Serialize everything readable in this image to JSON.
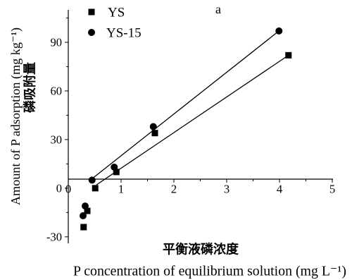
{
  "chart_data": {
    "type": "scatter",
    "title": "a",
    "xlabel": "P concentration of equilibrium solution (mg L⁻¹)",
    "xlabel_cn": "平衡液磷浓度",
    "ylabel": "Amount of P adsorption (mg kg⁻¹)",
    "ylabel_cn": "磷吸附量",
    "xlim": [
      0,
      5
    ],
    "ylim": [
      -34,
      110
    ],
    "x_ticks": [
      0,
      1,
      2,
      3,
      4,
      5
    ],
    "y_ticks": [
      -30,
      0,
      30,
      60,
      90
    ],
    "grid": false,
    "legend": "top-left",
    "series": [
      {
        "name": "YS",
        "marker": "square",
        "color": "#000000",
        "x": [
          0.29,
          0.36,
          0.51,
          0.91,
          1.64,
          4.17
        ],
        "y": [
          -24,
          -14,
          0,
          10,
          34,
          82
        ],
        "fit": {
          "x": [
            0.53,
            4.17
          ],
          "y": [
            2,
            82
          ]
        }
      },
      {
        "name": "YS-15",
        "marker": "circle",
        "color": "#000000",
        "x": [
          0.28,
          0.32,
          0.45,
          0.87,
          1.61,
          3.99
        ],
        "y": [
          -17,
          -11,
          5,
          13,
          38,
          97
        ],
        "fit": {
          "x": [
            0.44,
            3.99
          ],
          "y": [
            5.6,
            97
          ]
        }
      }
    ]
  }
}
